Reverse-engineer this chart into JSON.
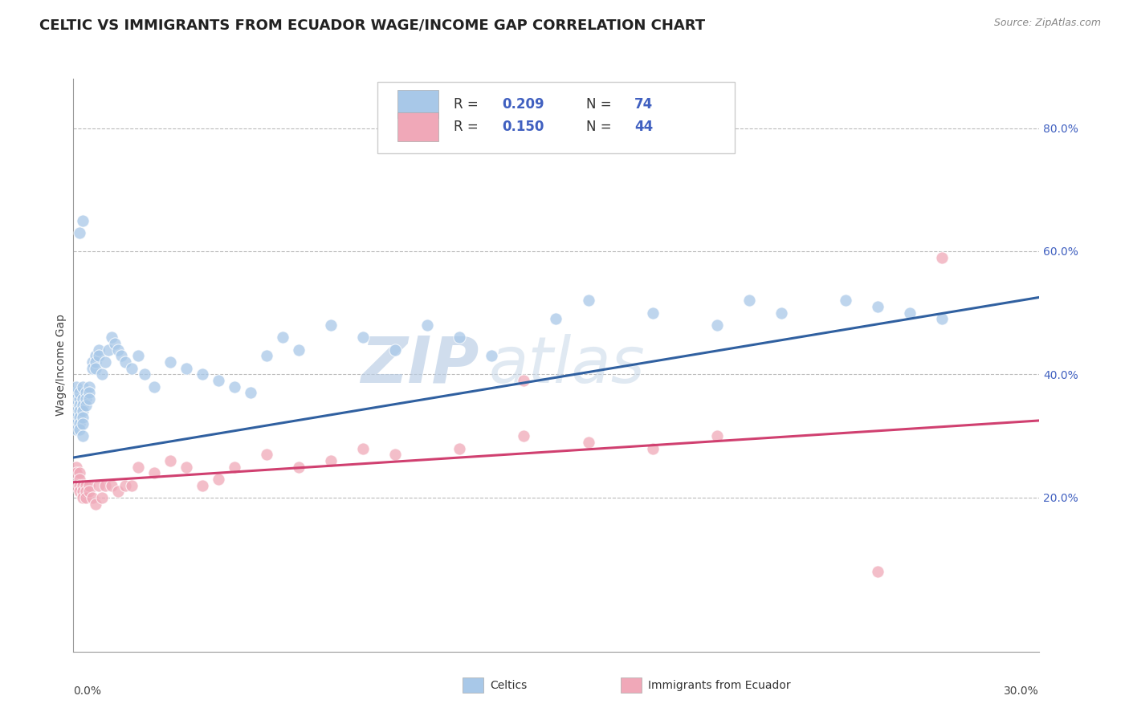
{
  "title": "CELTIC VS IMMIGRANTS FROM ECUADOR WAGE/INCOME GAP CORRELATION CHART",
  "source": "Source: ZipAtlas.com",
  "ylabel": "Wage/Income Gap",
  "celtics_R": 0.209,
  "celtics_N": 74,
  "ecuador_R": 0.15,
  "ecuador_N": 44,
  "celtics_color": "#a8c8e8",
  "ecuador_color": "#f0a8b8",
  "celtics_line_color": "#3060a0",
  "ecuador_line_color": "#d04070",
  "legend_text_color": "#4060c0",
  "watermark_zip_color": "#b8cce4",
  "watermark_atlas_color": "#c8d8e8",
  "background_color": "#ffffff",
  "grid_color": "#bbbbbb",
  "xmin": 0.0,
  "xmax": 0.3,
  "ymin": -0.05,
  "ymax": 0.88,
  "ytick_vals": [
    0.2,
    0.4,
    0.6,
    0.8
  ],
  "ytick_labels": [
    "20.0%",
    "40.0%",
    "60.0%",
    "80.0%"
  ],
  "celtics_trend_y0": 0.265,
  "celtics_trend_y1": 0.525,
  "ecuador_trend_y0": 0.225,
  "ecuador_trend_y1": 0.325,
  "celtics_x": [
    0.001,
    0.001,
    0.001,
    0.001,
    0.001,
    0.001,
    0.001,
    0.001,
    0.002,
    0.002,
    0.002,
    0.002,
    0.002,
    0.002,
    0.002,
    0.003,
    0.003,
    0.003,
    0.003,
    0.003,
    0.003,
    0.003,
    0.004,
    0.004,
    0.004,
    0.005,
    0.005,
    0.005,
    0.006,
    0.006,
    0.007,
    0.007,
    0.007,
    0.008,
    0.008,
    0.009,
    0.01,
    0.011,
    0.012,
    0.013,
    0.014,
    0.015,
    0.016,
    0.018,
    0.02,
    0.022,
    0.025,
    0.03,
    0.035,
    0.04,
    0.045,
    0.05,
    0.055,
    0.06,
    0.065,
    0.07,
    0.08,
    0.09,
    0.1,
    0.11,
    0.12,
    0.13,
    0.15,
    0.16,
    0.18,
    0.2,
    0.21,
    0.22,
    0.24,
    0.25,
    0.26,
    0.27,
    0.002,
    0.003
  ],
  "celtics_y": [
    0.35,
    0.37,
    0.38,
    0.36,
    0.34,
    0.33,
    0.32,
    0.31,
    0.36,
    0.37,
    0.35,
    0.34,
    0.33,
    0.32,
    0.31,
    0.38,
    0.36,
    0.35,
    0.34,
    0.33,
    0.32,
    0.3,
    0.37,
    0.36,
    0.35,
    0.38,
    0.37,
    0.36,
    0.42,
    0.41,
    0.43,
    0.42,
    0.41,
    0.44,
    0.43,
    0.4,
    0.42,
    0.44,
    0.46,
    0.45,
    0.44,
    0.43,
    0.42,
    0.41,
    0.43,
    0.4,
    0.38,
    0.42,
    0.41,
    0.4,
    0.39,
    0.38,
    0.37,
    0.43,
    0.46,
    0.44,
    0.48,
    0.46,
    0.44,
    0.48,
    0.46,
    0.43,
    0.49,
    0.52,
    0.5,
    0.48,
    0.52,
    0.5,
    0.52,
    0.51,
    0.5,
    0.49,
    0.63,
    0.65
  ],
  "ecuador_x": [
    0.001,
    0.001,
    0.001,
    0.002,
    0.002,
    0.002,
    0.002,
    0.003,
    0.003,
    0.003,
    0.004,
    0.004,
    0.004,
    0.005,
    0.005,
    0.006,
    0.007,
    0.008,
    0.009,
    0.01,
    0.012,
    0.014,
    0.016,
    0.018,
    0.02,
    0.025,
    0.03,
    0.035,
    0.04,
    0.045,
    0.05,
    0.06,
    0.07,
    0.08,
    0.09,
    0.1,
    0.12,
    0.14,
    0.16,
    0.18,
    0.2,
    0.25,
    0.14,
    0.27
  ],
  "ecuador_y": [
    0.25,
    0.24,
    0.22,
    0.24,
    0.23,
    0.22,
    0.21,
    0.22,
    0.21,
    0.2,
    0.22,
    0.21,
    0.2,
    0.22,
    0.21,
    0.2,
    0.19,
    0.22,
    0.2,
    0.22,
    0.22,
    0.21,
    0.22,
    0.22,
    0.25,
    0.24,
    0.26,
    0.25,
    0.22,
    0.23,
    0.25,
    0.27,
    0.25,
    0.26,
    0.28,
    0.27,
    0.28,
    0.3,
    0.29,
    0.28,
    0.3,
    0.08,
    0.39,
    0.59
  ]
}
